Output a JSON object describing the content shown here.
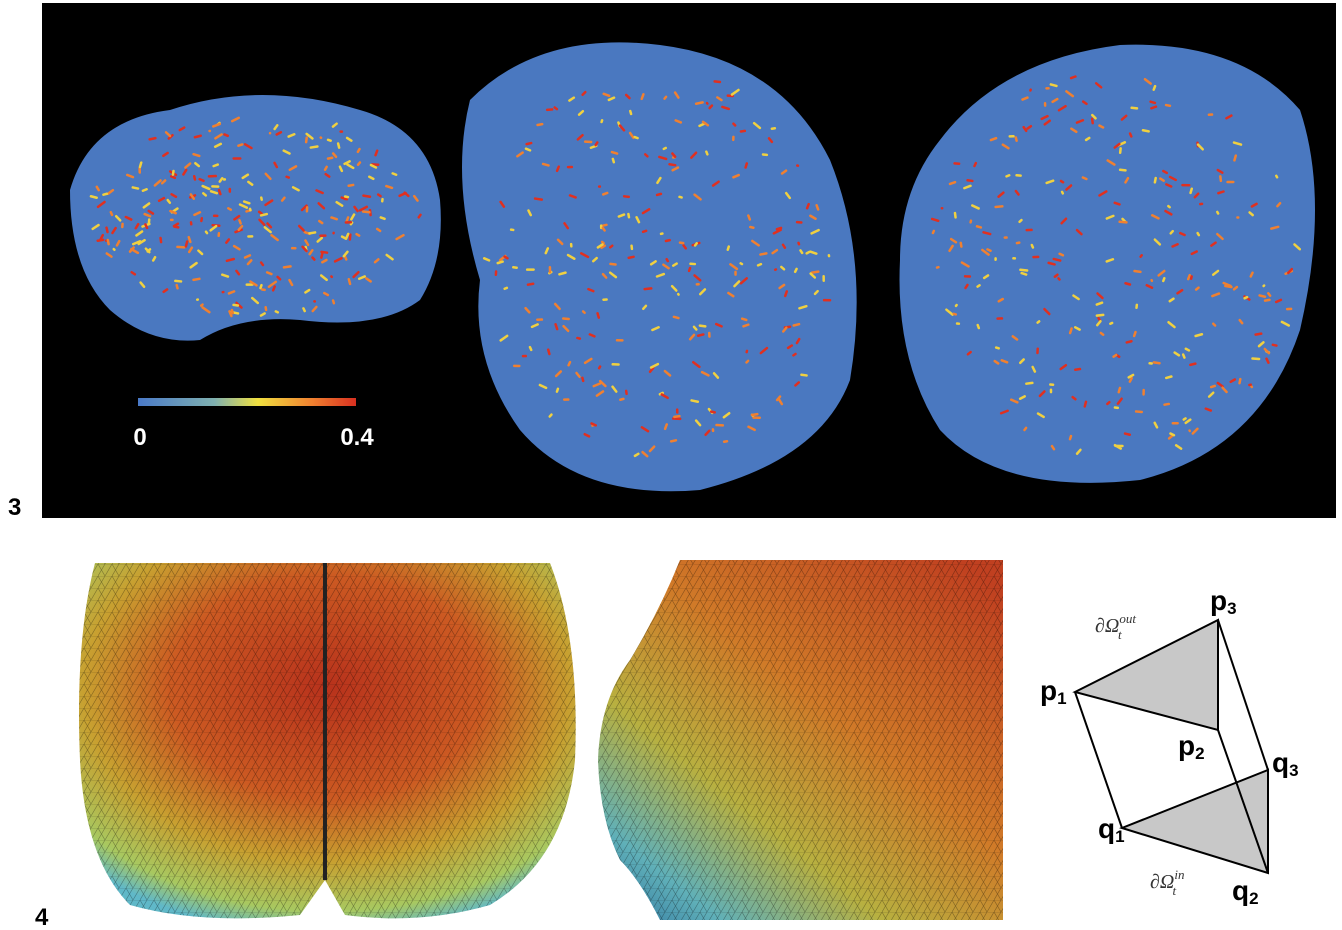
{
  "figure3": {
    "label": "3",
    "colorbar": {
      "min": "0",
      "max": "0.4"
    }
  },
  "figure4": {
    "label": "4",
    "diagram": {
      "nodes": [
        {
          "letter": "p",
          "index": "1"
        },
        {
          "letter": "p",
          "index": "2"
        },
        {
          "letter": "p",
          "index": "3"
        },
        {
          "letter": "q",
          "index": "1"
        },
        {
          "letter": "q",
          "index": "2"
        },
        {
          "letter": "q",
          "index": "3"
        }
      ],
      "boundary_out": {
        "base": "∂Ω",
        "sub": "t",
        "sup": "out"
      },
      "boundary_in": {
        "base": "∂Ω",
        "sub": "t",
        "sup": "in"
      }
    }
  }
}
